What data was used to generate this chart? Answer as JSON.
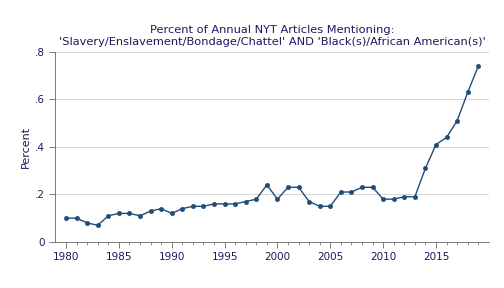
{
  "years": [
    1980,
    1981,
    1982,
    1983,
    1984,
    1985,
    1986,
    1987,
    1988,
    1989,
    1990,
    1991,
    1992,
    1993,
    1994,
    1995,
    1996,
    1997,
    1998,
    1999,
    2000,
    2001,
    2002,
    2003,
    2004,
    2005,
    2006,
    2007,
    2008,
    2009,
    2010,
    2011,
    2012,
    2013,
    2014,
    2015,
    2016,
    2017,
    2018,
    2019
  ],
  "values": [
    0.1,
    0.1,
    0.08,
    0.07,
    0.11,
    0.12,
    0.12,
    0.11,
    0.13,
    0.14,
    0.12,
    0.14,
    0.15,
    0.15,
    0.16,
    0.16,
    0.16,
    0.17,
    0.18,
    0.24,
    0.18,
    0.23,
    0.23,
    0.17,
    0.15,
    0.15,
    0.21,
    0.21,
    0.23,
    0.23,
    0.18,
    0.18,
    0.19,
    0.19,
    0.31,
    0.41,
    0.44,
    0.51,
    0.63,
    0.74
  ],
  "title_line1": "Percent of Annual NYT Articles Mentioning:",
  "title_line2": "'Slavery/Enslavement/Bondage/Chattel' AND 'Black(s)/African American(s)'",
  "ylabel": "Percent",
  "xlim": [
    1979,
    2020
  ],
  "ylim": [
    0,
    0.8
  ],
  "yticks": [
    0,
    0.2,
    0.4,
    0.6,
    0.8
  ],
  "ytick_labels": [
    "0",
    ".2",
    ".4",
    ".6",
    ".8"
  ],
  "xticks": [
    1980,
    1985,
    1990,
    1995,
    2000,
    2005,
    2010,
    2015
  ],
  "line_color": "#1f4e79",
  "marker_color": "#1f4e79",
  "bg_color": "#ffffff",
  "grid_color": "#c8c8c8",
  "title_color": "#1a1a5e",
  "label_color": "#1a1a5e"
}
